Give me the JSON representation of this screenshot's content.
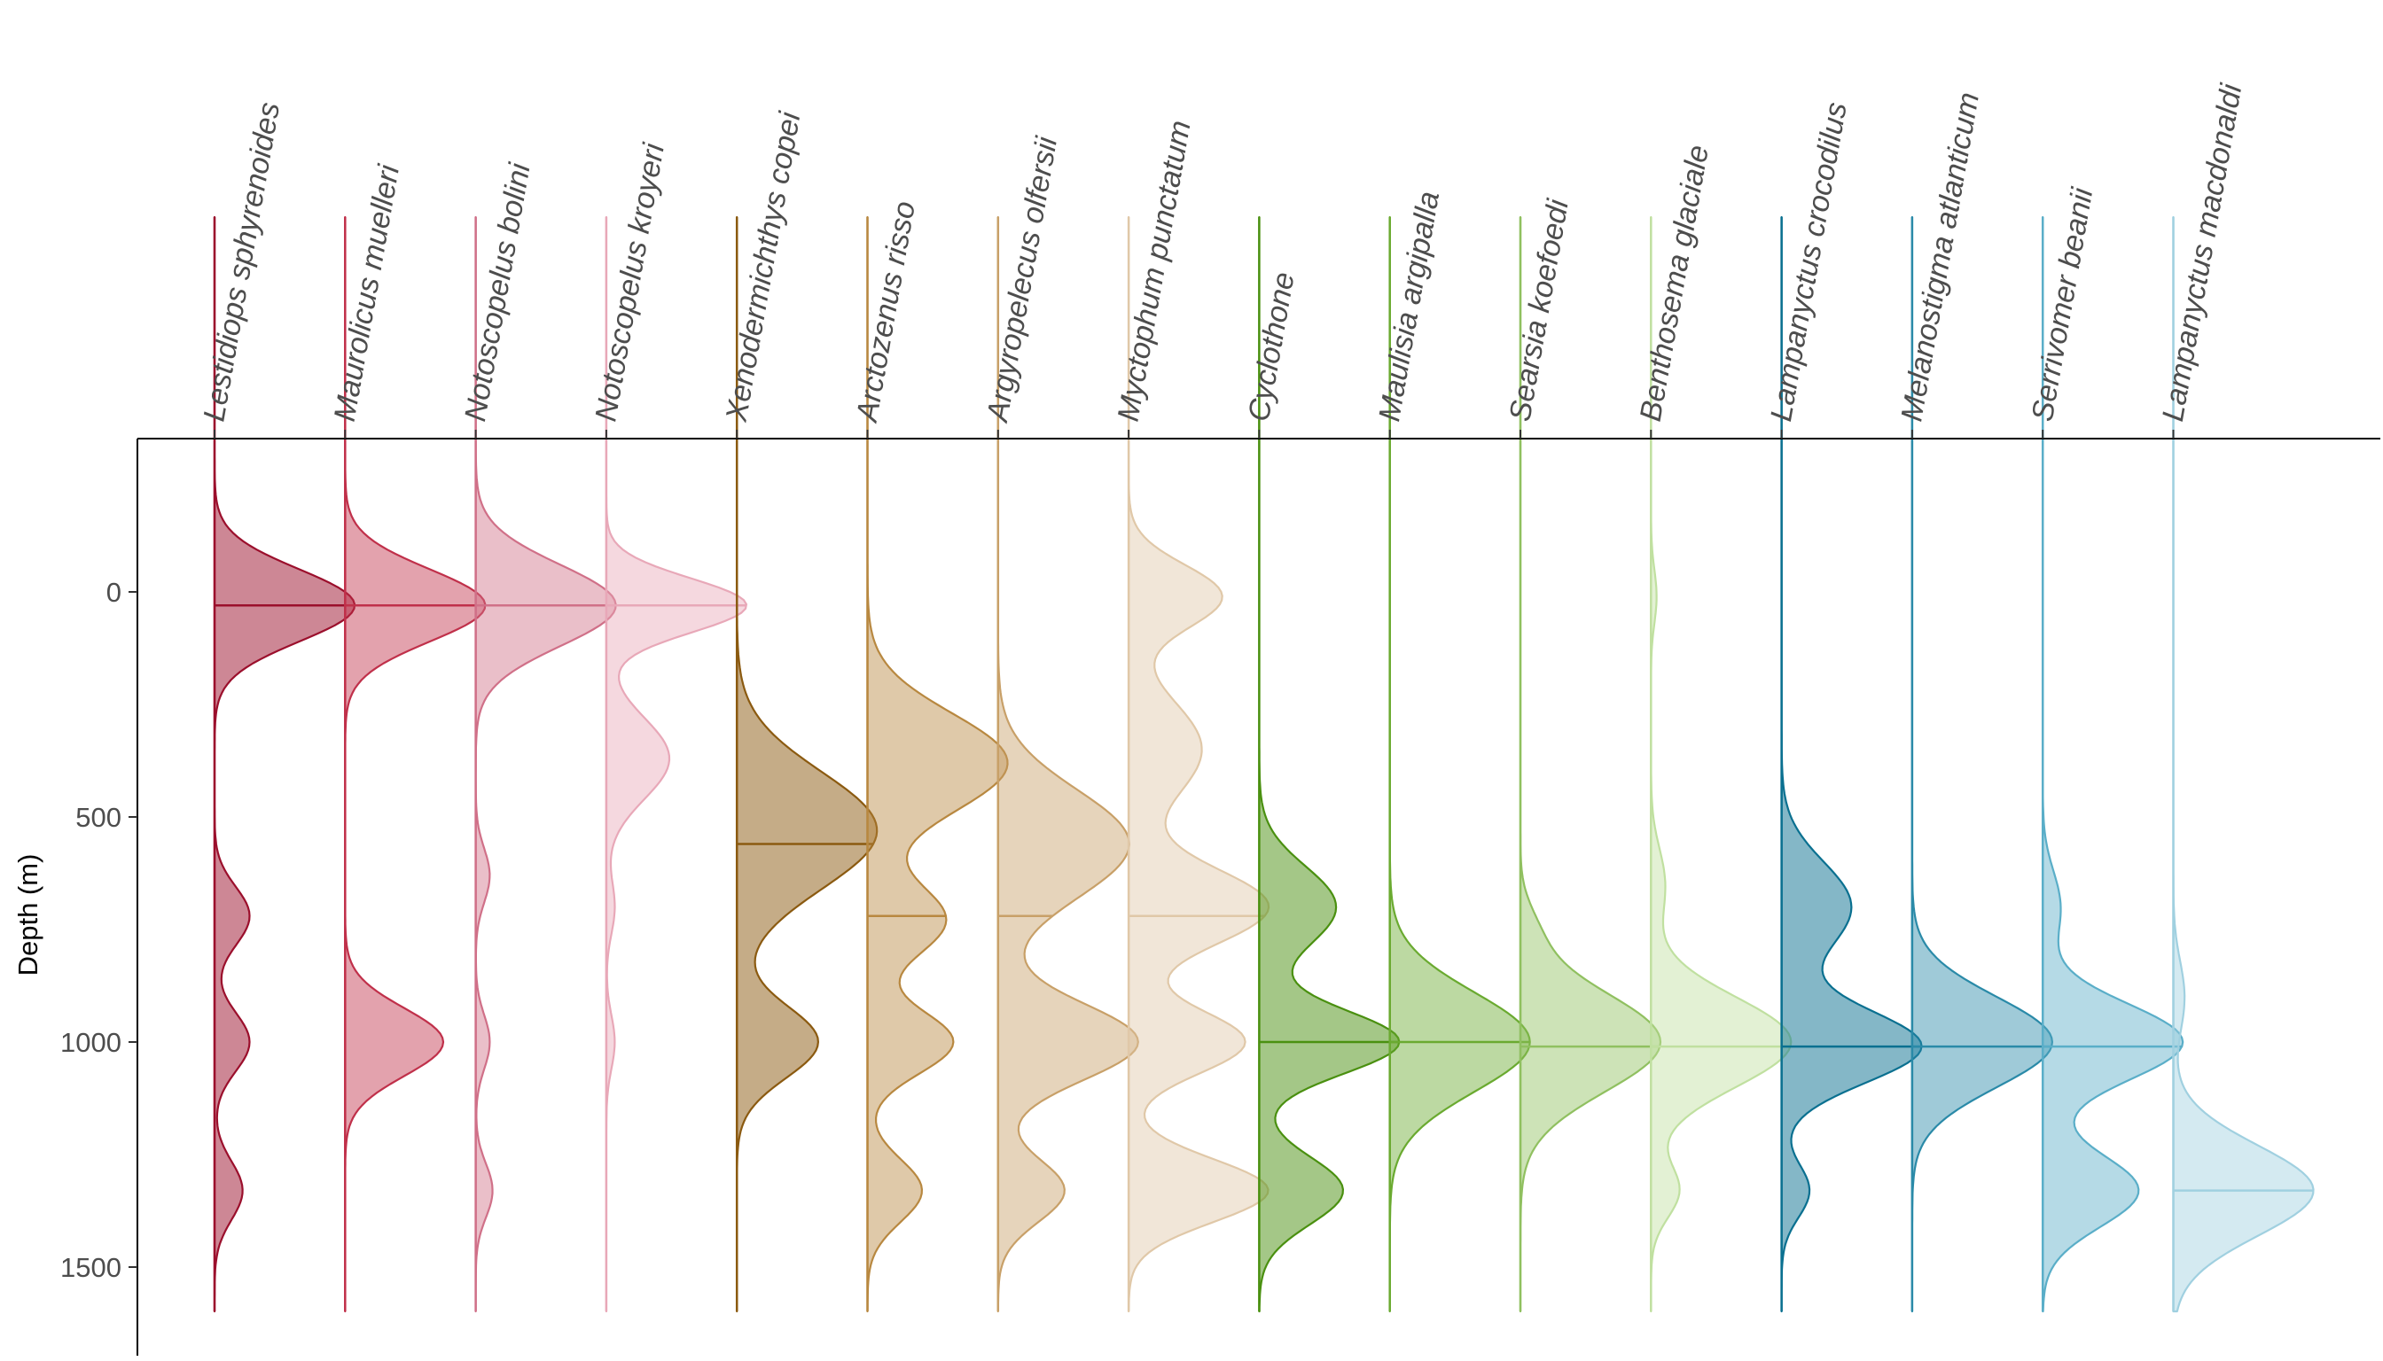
{
  "chart_data": {
    "type": "violin",
    "title": "",
    "xlabel": "",
    "ylabel": "Depth (m)",
    "ylim": [
      -240,
      1610
    ],
    "y_reversed": true,
    "yticks": [
      0,
      500,
      1000,
      1500
    ],
    "grid": false,
    "legend": "none",
    "series": [
      {
        "name": "Lestidiops sphyrenoides",
        "color": "#9b0f2c",
        "fill_opacity": 0.5,
        "median": 30,
        "components": [
          [
            30,
            80,
            1.0
          ],
          [
            720,
            65,
            0.25
          ],
          [
            1000,
            65,
            0.25
          ],
          [
            1330,
            65,
            0.2
          ]
        ]
      },
      {
        "name": "Maurolicus muelleri",
        "color": "#c0304a",
        "fill_opacity": 0.45,
        "median": 30,
        "components": [
          [
            30,
            80,
            1.0
          ],
          [
            1000,
            75,
            0.7
          ]
        ]
      },
      {
        "name": "Notoscopelus bolini",
        "color": "#d07088",
        "fill_opacity": 0.45,
        "median": 30,
        "components": [
          [
            30,
            90,
            1.0
          ],
          [
            630,
            60,
            0.1
          ],
          [
            1000,
            60,
            0.1
          ],
          [
            1330,
            60,
            0.12
          ]
        ]
      },
      {
        "name": "Notoscopelus kroyeri",
        "color": "#e8a8b8",
        "fill_opacity": 0.45,
        "median": 30,
        "components": [
          [
            30,
            60,
            1.0
          ],
          [
            370,
            90,
            0.45
          ],
          [
            700,
            60,
            0.06
          ],
          [
            1000,
            60,
            0.06
          ]
        ]
      },
      {
        "name": "Xenodermichthys copei",
        "color": "#8b5a10",
        "fill_opacity": 0.5,
        "median": 560,
        "components": [
          [
            530,
            130,
            0.95
          ],
          [
            1000,
            80,
            0.55
          ]
        ]
      },
      {
        "name": "Arctozenus risso",
        "color": "#b88840",
        "fill_opacity": 0.45,
        "median": 720,
        "components": [
          [
            380,
            110,
            0.9
          ],
          [
            730,
            80,
            0.5
          ],
          [
            1000,
            70,
            0.55
          ],
          [
            1330,
            70,
            0.35
          ]
        ]
      },
      {
        "name": "Argyropelecus olfersii",
        "color": "#c8a068",
        "fill_opacity": 0.45,
        "median": 720,
        "components": [
          [
            560,
            120,
            0.75
          ],
          [
            1000,
            85,
            0.8
          ],
          [
            1330,
            70,
            0.38
          ]
        ]
      },
      {
        "name": "Myctophum punctatum",
        "color": "#e0c8a8",
        "fill_opacity": 0.45,
        "median": 720,
        "components": [
          [
            10,
            70,
            0.28
          ],
          [
            350,
            110,
            0.22
          ],
          [
            700,
            85,
            0.42
          ],
          [
            1000,
            70,
            0.35
          ],
          [
            1330,
            70,
            0.42
          ]
        ]
      },
      {
        "name": "Cyclothone",
        "color": "#4a9010",
        "fill_opacity": 0.5,
        "median": 1000,
        "components": [
          [
            700,
            90,
            0.55
          ],
          [
            1000,
            70,
            1.0
          ],
          [
            1330,
            75,
            0.6
          ]
        ]
      },
      {
        "name": "Maulisia argipalla",
        "color": "#6aaa30",
        "fill_opacity": 0.45,
        "median": 1000,
        "components": [
          [
            1000,
            110,
            1.0
          ]
        ]
      },
      {
        "name": "Searsia koefoedi",
        "color": "#90c060",
        "fill_opacity": 0.45,
        "median": 1010,
        "components": [
          [
            1000,
            110,
            1.0
          ],
          [
            750,
            60,
            0.08
          ]
        ]
      },
      {
        "name": "Benthosema glaciale",
        "color": "#c0e0a0",
        "fill_opacity": 0.45,
        "median": 1010,
        "components": [
          [
            1000,
            100,
            1.0
          ],
          [
            10,
            60,
            0.04
          ],
          [
            650,
            80,
            0.1
          ],
          [
            1330,
            60,
            0.2
          ]
        ]
      },
      {
        "name": "Lampanyctus crocodilus",
        "color": "#0a7090",
        "fill_opacity": 0.5,
        "median": 1010,
        "components": [
          [
            1010,
            80,
            1.0
          ],
          [
            700,
            100,
            0.5
          ],
          [
            1330,
            60,
            0.2
          ]
        ]
      },
      {
        "name": "Melanostigma atlanticum",
        "color": "#2a8aa8",
        "fill_opacity": 0.45,
        "median": 1010,
        "components": [
          [
            1000,
            100,
            1.0
          ]
        ]
      },
      {
        "name": "Serrivomer beanii",
        "color": "#5aaec8",
        "fill_opacity": 0.45,
        "median": 1010,
        "components": [
          [
            1000,
            85,
            0.95
          ],
          [
            1330,
            80,
            0.65
          ],
          [
            700,
            80,
            0.12
          ]
        ]
      },
      {
        "name": "Lampanyctus macdonaldi",
        "color": "#a0d0e0",
        "fill_opacity": 0.45,
        "median": 1330,
        "components": [
          [
            1330,
            100,
            1.0
          ],
          [
            900,
            80,
            0.08
          ]
        ]
      }
    ]
  }
}
